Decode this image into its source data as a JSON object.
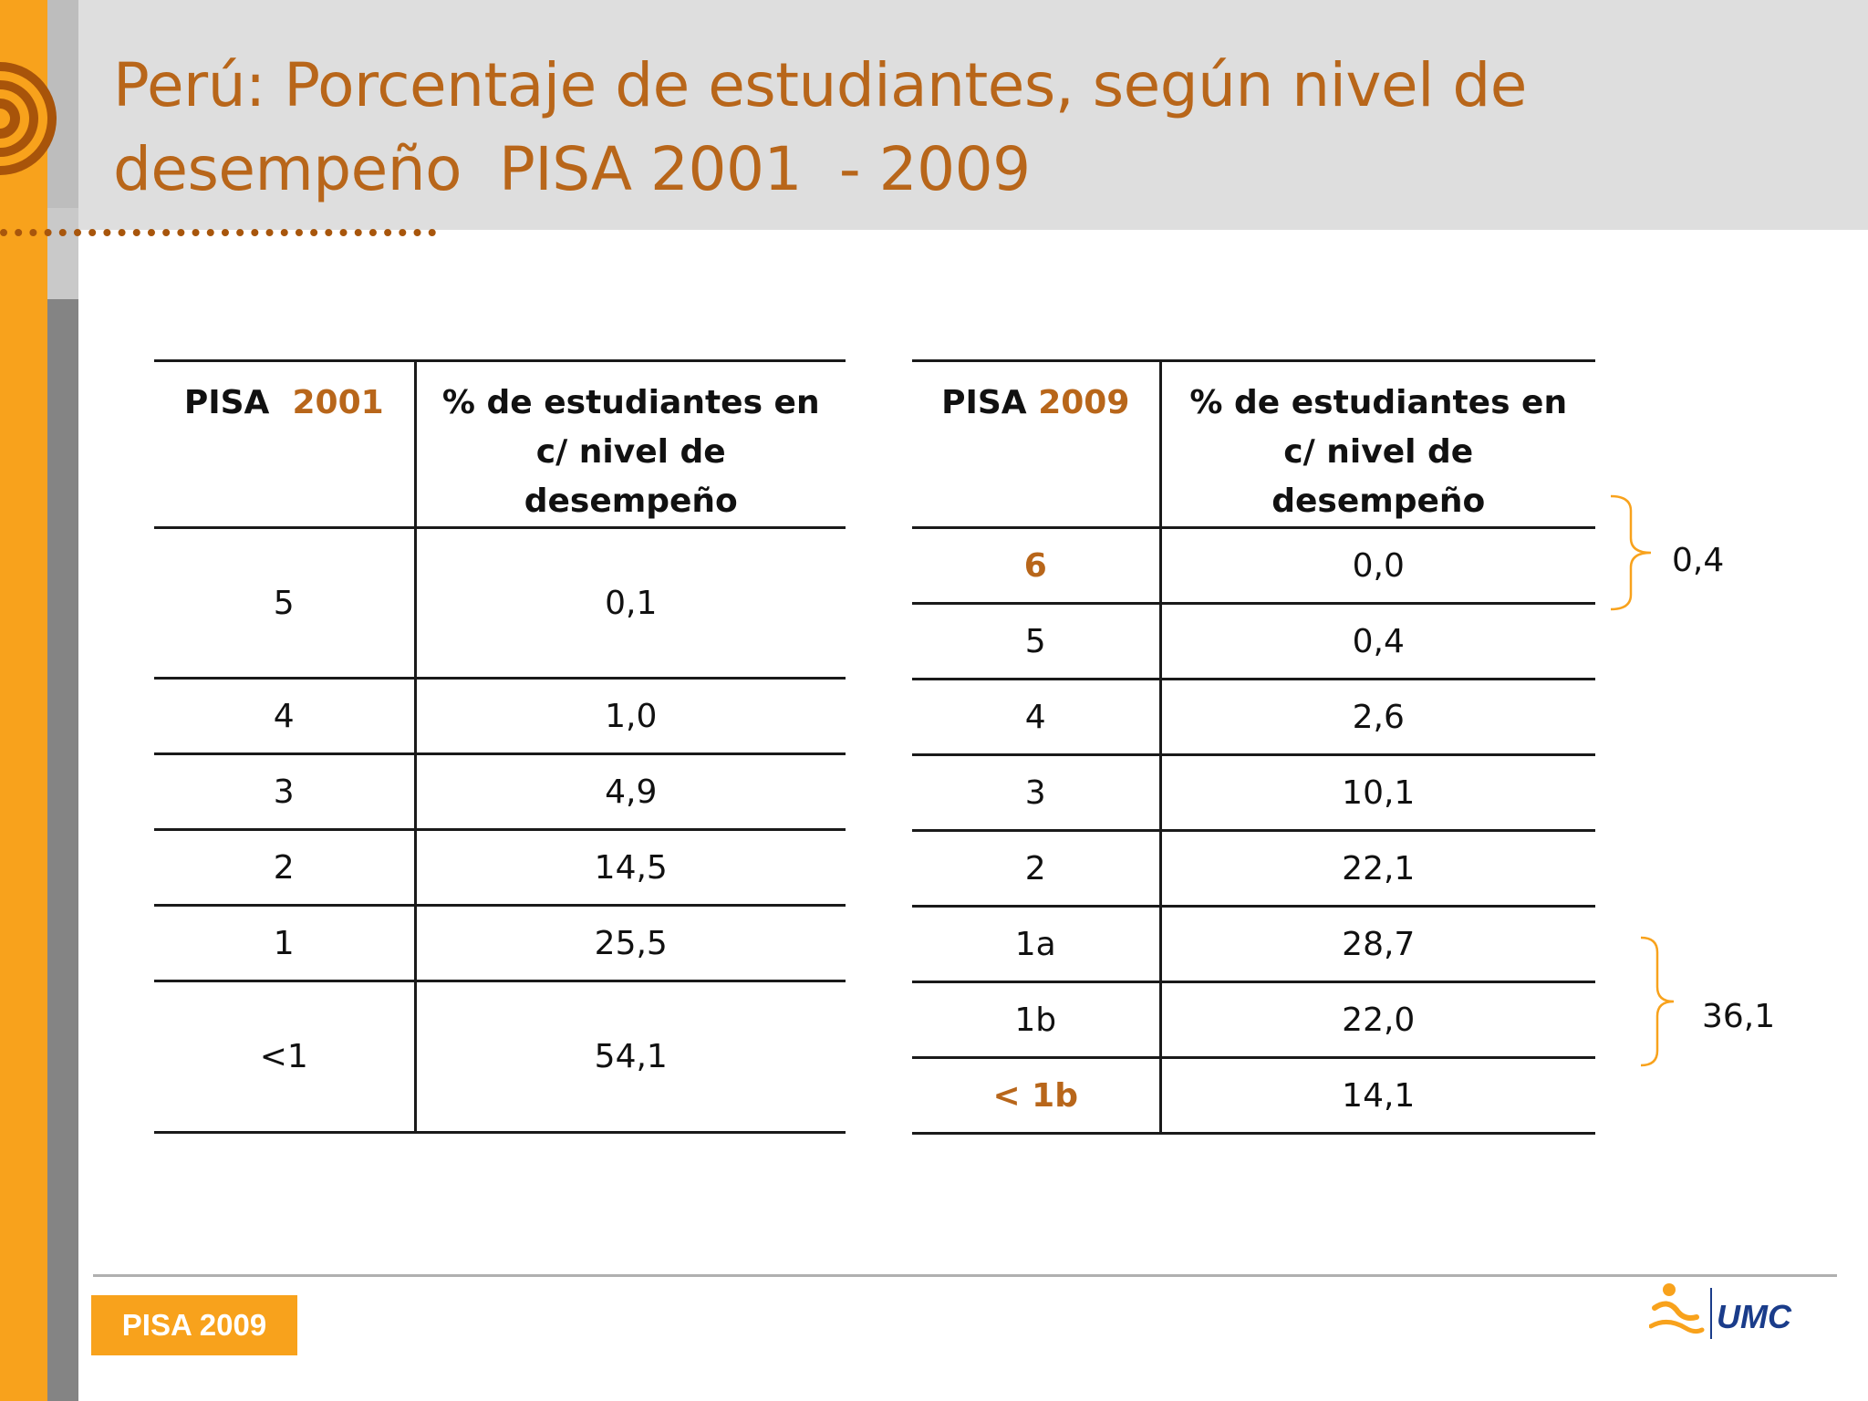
{
  "title": {
    "line1": "Perú: Porcentaje de estudiantes, según nivel de",
    "line2": "desempeño  PISA 2001  - 2009"
  },
  "table_2001": {
    "header_prefix": "PISA",
    "header_year": "2001",
    "header_col2": "% de estudiantes en c/ nivel de desempeño",
    "rows": [
      {
        "level": "5",
        "pct": "0,1"
      },
      {
        "level": "4",
        "pct": "1,0"
      },
      {
        "level": "3",
        "pct": "4,9"
      },
      {
        "level": "2",
        "pct": "14,5"
      },
      {
        "level": "1",
        "pct": "25,5"
      },
      {
        "level": "<1",
        "pct": "54,1"
      }
    ]
  },
  "table_2009": {
    "header_prefix": "PISA",
    "header_year": "2009",
    "header_col2": "% de estudiantes en c/ nivel de desempeño",
    "rows": [
      {
        "level": "6",
        "pct": "0,0"
      },
      {
        "level": "5",
        "pct": "0,4"
      },
      {
        "level": "4",
        "pct": "2,6"
      },
      {
        "level": "3",
        "pct": "10,1"
      },
      {
        "level": "2",
        "pct": "22,1"
      },
      {
        "level": "1a",
        "pct": "28,7"
      },
      {
        "level": "1b",
        "pct": "22,0"
      },
      {
        "level": "< 1b",
        "pct": "14,1"
      }
    ]
  },
  "brace_top_value": "0,4",
  "brace_bottom_value": "36,1",
  "footer_tag": "PISA 2009",
  "logo_text": "UMC",
  "colors": {
    "accent": "#b8661a",
    "orange": "#f8a21c",
    "gray": "#848484"
  }
}
